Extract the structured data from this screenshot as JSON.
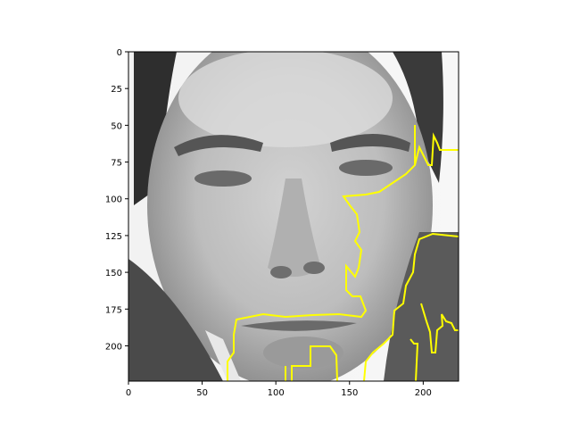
{
  "figure": {
    "background": "#ffffff"
  },
  "image_panel": {
    "description_kind": "grayscale face photo with segmentation boundary overlay",
    "boundary_color": "#ffff00",
    "colormap": "gray"
  },
  "axes": {
    "x_ticks": [
      "0",
      "50",
      "100",
      "150",
      "200"
    ],
    "y_ticks": [
      "0",
      "25",
      "50",
      "75",
      "100",
      "125",
      "150",
      "175",
      "200"
    ],
    "x_range": [
      0,
      224
    ],
    "y_range": [
      224,
      0
    ]
  }
}
